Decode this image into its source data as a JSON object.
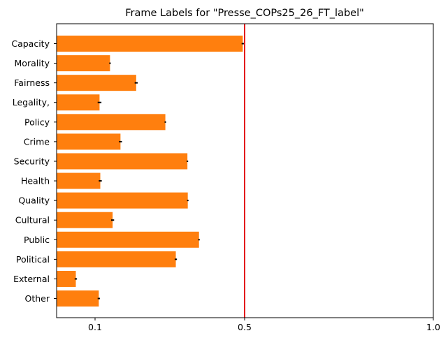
{
  "chart_data": {
    "type": "bar",
    "orientation": "horizontal",
    "title": "Frame Labels for \"Presse_COPs25_26_FT_label\"",
    "xlabel": "",
    "ylabel": "",
    "categories": [
      "Capacity",
      "Morality",
      "Fairness",
      "Legality,",
      "Policy",
      "Crime",
      "Security",
      "Health",
      "Quality",
      "Cultural",
      "Public",
      "Political",
      "External",
      "Other"
    ],
    "values": [
      0.495,
      0.14,
      0.21,
      0.112,
      0.288,
      0.168,
      0.347,
      0.114,
      0.348,
      0.147,
      0.378,
      0.316,
      0.05,
      0.11
    ],
    "errors": [
      0.003,
      0.002,
      0.004,
      0.005,
      0.002,
      0.004,
      0.002,
      0.004,
      0.002,
      0.004,
      0.002,
      0.003,
      0.003,
      0.003
    ],
    "xlim": [
      0.0,
      1.0
    ],
    "xticks": [
      0.1,
      0.5,
      1.0
    ],
    "xtick_labels": [
      "0.1",
      "0.5",
      "1.0"
    ],
    "reference_line": {
      "x": 0.5,
      "color": "#e31a1c"
    },
    "bar_color": "#ff7f0e",
    "errorbar_color": "#000000",
    "grid": false,
    "legend": "none"
  }
}
